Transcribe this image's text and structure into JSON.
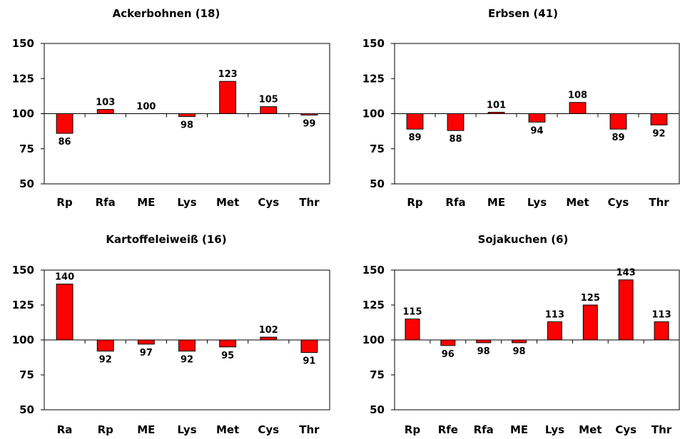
{
  "chart_data": [
    {
      "type": "bar",
      "title": "Ackerbohnen (18)",
      "categories": [
        "Rp",
        "Rfa",
        "ME",
        "Lys",
        "Met",
        "Cys",
        "Thr"
      ],
      "values": [
        86,
        103,
        100,
        98,
        123,
        105,
        99
      ],
      "ylim": [
        50,
        150
      ],
      "yticks": [
        50,
        75,
        100,
        125,
        150
      ],
      "baseline": 100,
      "bar_color": "#ff0000"
    },
    {
      "type": "bar",
      "title": "Erbsen (41)",
      "categories": [
        "Rp",
        "Rfa",
        "ME",
        "Lys",
        "Met",
        "Cys",
        "Thr"
      ],
      "values": [
        89,
        88,
        101,
        94,
        108,
        89,
        92
      ],
      "ylim": [
        50,
        150
      ],
      "yticks": [
        50,
        75,
        100,
        125,
        150
      ],
      "baseline": 100,
      "bar_color": "#ff0000"
    },
    {
      "type": "bar",
      "title": "Kartoffeleiweiß (16)",
      "categories": [
        "Ra",
        "Rp",
        "ME",
        "Lys",
        "Met",
        "Cys",
        "Thr"
      ],
      "values": [
        140,
        92,
        97,
        92,
        95,
        102,
        91
      ],
      "ylim": [
        50,
        150
      ],
      "yticks": [
        50,
        75,
        100,
        125,
        150
      ],
      "baseline": 100,
      "bar_color": "#ff0000"
    },
    {
      "type": "bar",
      "title": "Sojakuchen (6)",
      "categories": [
        "Rp",
        "Rfe",
        "Rfa",
        "ME",
        "Lys",
        "Met",
        "Cys",
        "Thr"
      ],
      "values": [
        115,
        96,
        98,
        98,
        113,
        125,
        143,
        113
      ],
      "ylim": [
        50,
        150
      ],
      "yticks": [
        50,
        75,
        100,
        125,
        150
      ],
      "baseline": 100,
      "bar_color": "#ff0000"
    }
  ]
}
